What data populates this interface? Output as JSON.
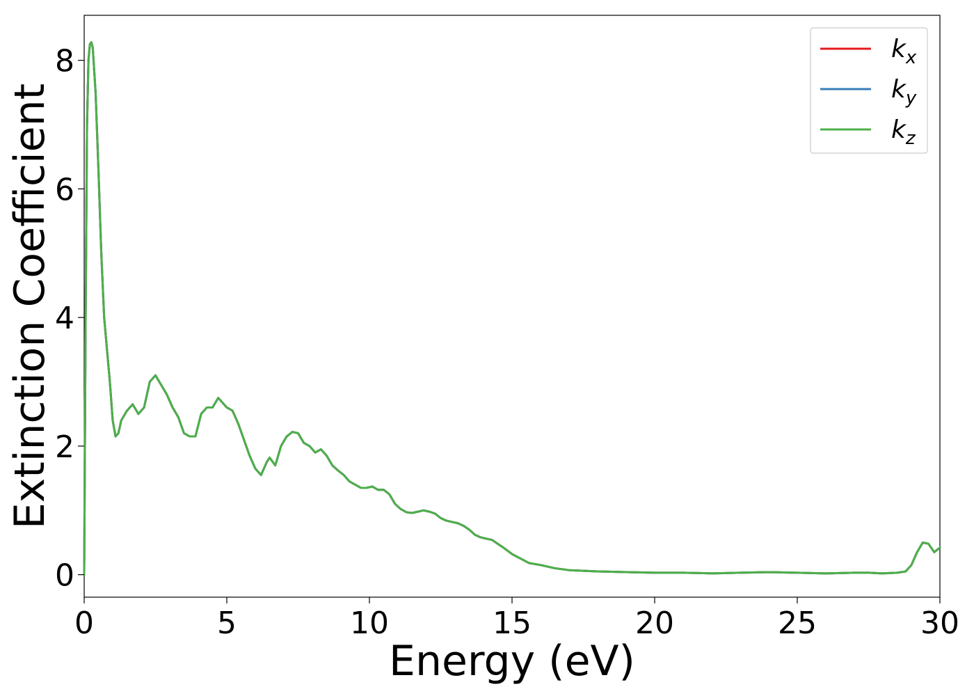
{
  "chart_data": {
    "type": "line",
    "xlabel": "Energy (eV)",
    "ylabel": "Extinction Coefficient",
    "xlim": [
      0,
      30
    ],
    "ylim": [
      -0.35,
      8.7
    ],
    "xticks": [
      0,
      5,
      10,
      15,
      20,
      25,
      30
    ],
    "yticks": [
      0,
      2,
      4,
      6,
      8
    ],
    "grid": false,
    "legend": {
      "placement": "top-right",
      "entries": [
        {
          "base": "k",
          "sub": "x",
          "color": "#e41a1c"
        },
        {
          "base": "k",
          "sub": "y",
          "color": "#377eb8"
        },
        {
          "base": "k",
          "sub": "z",
          "color": "#4daf4a"
        }
      ]
    },
    "x": [
      0,
      0.05,
      0.1,
      0.15,
      0.2,
      0.25,
      0.3,
      0.4,
      0.5,
      0.6,
      0.7,
      0.8,
      0.9,
      1.0,
      1.1,
      1.2,
      1.3,
      1.5,
      1.7,
      1.9,
      2.1,
      2.3,
      2.5,
      2.7,
      2.9,
      3.1,
      3.3,
      3.5,
      3.7,
      3.9,
      4.1,
      4.3,
      4.5,
      4.7,
      4.8,
      5.0,
      5.2,
      5.4,
      5.6,
      5.8,
      6.0,
      6.2,
      6.4,
      6.5,
      6.7,
      6.9,
      7.1,
      7.3,
      7.5,
      7.7,
      7.9,
      8.1,
      8.3,
      8.5,
      8.7,
      8.9,
      9.1,
      9.3,
      9.5,
      9.7,
      9.9,
      10.1,
      10.3,
      10.5,
      10.7,
      10.9,
      11.1,
      11.3,
      11.5,
      11.7,
      11.9,
      12.1,
      12.3,
      12.5,
      12.7,
      12.9,
      13.1,
      13.3,
      13.5,
      13.7,
      13.9,
      14.1,
      14.3,
      14.5,
      14.7,
      15.0,
      15.3,
      15.6,
      16.0,
      16.5,
      17.0,
      17.5,
      18.0,
      19.0,
      20.0,
      21.0,
      22.0,
      23.0,
      24.0,
      25.0,
      26.0,
      27.0,
      27.5,
      28.0,
      28.5,
      28.8,
      29.0,
      29.2,
      29.4,
      29.6,
      29.8,
      30.0
    ],
    "series": [
      {
        "name": "k_x",
        "color": "#e41a1c",
        "values": [
          0,
          4.0,
          7.0,
          8.0,
          8.25,
          8.28,
          8.2,
          7.5,
          6.3,
          5.0,
          4.0,
          3.5,
          3.0,
          2.4,
          2.15,
          2.2,
          2.4,
          2.55,
          2.65,
          2.5,
          2.6,
          3.0,
          3.1,
          2.95,
          2.8,
          2.6,
          2.45,
          2.2,
          2.15,
          2.15,
          2.5,
          2.6,
          2.6,
          2.75,
          2.7,
          2.6,
          2.55,
          2.35,
          2.1,
          1.85,
          1.65,
          1.55,
          1.75,
          1.82,
          1.7,
          2.0,
          2.15,
          2.22,
          2.2,
          2.05,
          2.0,
          1.9,
          1.95,
          1.85,
          1.7,
          1.62,
          1.55,
          1.45,
          1.4,
          1.35,
          1.35,
          1.37,
          1.32,
          1.32,
          1.25,
          1.1,
          1.02,
          0.97,
          0.96,
          0.98,
          1.0,
          0.98,
          0.95,
          0.88,
          0.84,
          0.82,
          0.8,
          0.76,
          0.7,
          0.62,
          0.58,
          0.56,
          0.54,
          0.48,
          0.42,
          0.32,
          0.25,
          0.18,
          0.15,
          0.1,
          0.07,
          0.06,
          0.05,
          0.04,
          0.03,
          0.03,
          0.02,
          0.03,
          0.04,
          0.03,
          0.02,
          0.03,
          0.03,
          0.02,
          0.03,
          0.05,
          0.15,
          0.35,
          0.5,
          0.48,
          0.35,
          0.42
        ]
      },
      {
        "name": "k_y",
        "color": "#377eb8",
        "values": [
          0,
          4.0,
          7.0,
          8.0,
          8.25,
          8.28,
          8.2,
          7.5,
          6.3,
          5.0,
          4.0,
          3.5,
          3.0,
          2.4,
          2.15,
          2.2,
          2.4,
          2.55,
          2.65,
          2.5,
          2.6,
          3.0,
          3.1,
          2.95,
          2.8,
          2.6,
          2.45,
          2.2,
          2.15,
          2.15,
          2.5,
          2.6,
          2.6,
          2.75,
          2.7,
          2.6,
          2.55,
          2.35,
          2.1,
          1.85,
          1.65,
          1.55,
          1.75,
          1.82,
          1.7,
          2.0,
          2.15,
          2.22,
          2.2,
          2.05,
          2.0,
          1.9,
          1.95,
          1.85,
          1.7,
          1.62,
          1.55,
          1.45,
          1.4,
          1.35,
          1.35,
          1.37,
          1.32,
          1.32,
          1.25,
          1.1,
          1.02,
          0.97,
          0.96,
          0.98,
          1.0,
          0.98,
          0.95,
          0.88,
          0.84,
          0.82,
          0.8,
          0.76,
          0.7,
          0.62,
          0.58,
          0.56,
          0.54,
          0.48,
          0.42,
          0.32,
          0.25,
          0.18,
          0.15,
          0.1,
          0.07,
          0.06,
          0.05,
          0.04,
          0.03,
          0.03,
          0.02,
          0.03,
          0.04,
          0.03,
          0.02,
          0.03,
          0.03,
          0.02,
          0.03,
          0.05,
          0.15,
          0.35,
          0.5,
          0.48,
          0.35,
          0.42
        ]
      },
      {
        "name": "k_z",
        "color": "#4daf4a",
        "values": [
          0,
          4.0,
          7.0,
          8.0,
          8.25,
          8.28,
          8.2,
          7.5,
          6.3,
          5.0,
          4.0,
          3.5,
          3.0,
          2.4,
          2.15,
          2.2,
          2.4,
          2.55,
          2.65,
          2.5,
          2.6,
          3.0,
          3.1,
          2.95,
          2.8,
          2.6,
          2.45,
          2.2,
          2.15,
          2.15,
          2.5,
          2.6,
          2.6,
          2.75,
          2.7,
          2.6,
          2.55,
          2.35,
          2.1,
          1.85,
          1.65,
          1.55,
          1.75,
          1.82,
          1.7,
          2.0,
          2.15,
          2.22,
          2.2,
          2.05,
          2.0,
          1.9,
          1.95,
          1.85,
          1.7,
          1.62,
          1.55,
          1.45,
          1.4,
          1.35,
          1.35,
          1.37,
          1.32,
          1.32,
          1.25,
          1.1,
          1.02,
          0.97,
          0.96,
          0.98,
          1.0,
          0.98,
          0.95,
          0.88,
          0.84,
          0.82,
          0.8,
          0.76,
          0.7,
          0.62,
          0.58,
          0.56,
          0.54,
          0.48,
          0.42,
          0.32,
          0.25,
          0.18,
          0.15,
          0.1,
          0.07,
          0.06,
          0.05,
          0.04,
          0.03,
          0.03,
          0.02,
          0.03,
          0.04,
          0.03,
          0.02,
          0.03,
          0.03,
          0.02,
          0.03,
          0.05,
          0.15,
          0.35,
          0.5,
          0.48,
          0.35,
          0.42
        ]
      }
    ]
  }
}
